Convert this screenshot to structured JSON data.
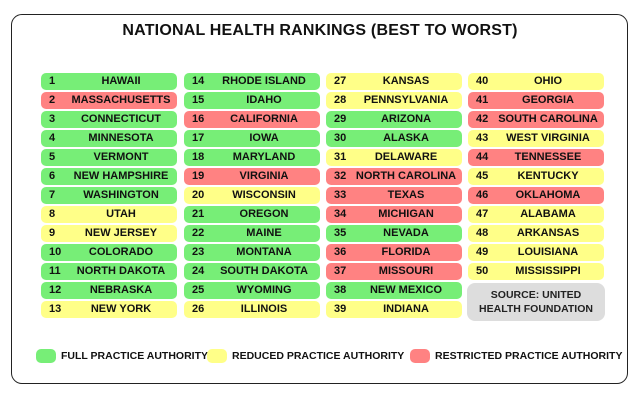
{
  "title": "NATIONAL HEALTH RANKINGS (BEST TO WORST)",
  "categories": {
    "full": {
      "label": "FULL PRACTICE AUTHORITY",
      "color": "#77ee77"
    },
    "reduced": {
      "label": "REDUCED PRACTICE AUTHORITY",
      "color": "#ffff88"
    },
    "restricted": {
      "label": "RESTRICTED PRACTICE AUTHORITY",
      "color": "#ff8282"
    }
  },
  "rankings": [
    {
      "rank": "1",
      "state": "HAWAII",
      "status": "full"
    },
    {
      "rank": "2",
      "state": "MASSACHUSETTS",
      "status": "restricted"
    },
    {
      "rank": "3",
      "state": "CONNECTICUT",
      "status": "full"
    },
    {
      "rank": "4",
      "state": "MINNESOTA",
      "status": "full"
    },
    {
      "rank": "5",
      "state": "VERMONT",
      "status": "full"
    },
    {
      "rank": "6",
      "state": "NEW HAMPSHIRE",
      "status": "full"
    },
    {
      "rank": "7",
      "state": "WASHINGTON",
      "status": "full"
    },
    {
      "rank": "8",
      "state": "UTAH",
      "status": "reduced"
    },
    {
      "rank": "9",
      "state": "NEW JERSEY",
      "status": "reduced"
    },
    {
      "rank": "10",
      "state": "COLORADO",
      "status": "full"
    },
    {
      "rank": "11",
      "state": "NORTH DAKOTA",
      "status": "full"
    },
    {
      "rank": "12",
      "state": "NEBRASKA",
      "status": "full"
    },
    {
      "rank": "13",
      "state": "NEW YORK",
      "status": "reduced"
    },
    {
      "rank": "14",
      "state": "RHODE ISLAND",
      "status": "full"
    },
    {
      "rank": "15",
      "state": "IDAHO",
      "status": "full"
    },
    {
      "rank": "16",
      "state": "CALIFORNIA",
      "status": "restricted"
    },
    {
      "rank": "17",
      "state": "IOWA",
      "status": "full"
    },
    {
      "rank": "18",
      "state": "MARYLAND",
      "status": "full"
    },
    {
      "rank": "19",
      "state": "VIRGINIA",
      "status": "restricted"
    },
    {
      "rank": "20",
      "state": "WISCONSIN",
      "status": "reduced"
    },
    {
      "rank": "21",
      "state": "OREGON",
      "status": "full"
    },
    {
      "rank": "22",
      "state": "MAINE",
      "status": "full"
    },
    {
      "rank": "23",
      "state": "MONTANA",
      "status": "full"
    },
    {
      "rank": "24",
      "state": "SOUTH DAKOTA",
      "status": "full"
    },
    {
      "rank": "25",
      "state": "WYOMING",
      "status": "full"
    },
    {
      "rank": "26",
      "state": "ILLINOIS",
      "status": "reduced"
    },
    {
      "rank": "27",
      "state": "KANSAS",
      "status": "reduced"
    },
    {
      "rank": "28",
      "state": "PENNSYLVANIA",
      "status": "reduced"
    },
    {
      "rank": "29",
      "state": "ARIZONA",
      "status": "full"
    },
    {
      "rank": "30",
      "state": "ALASKA",
      "status": "full"
    },
    {
      "rank": "31",
      "state": "DELAWARE",
      "status": "reduced"
    },
    {
      "rank": "32",
      "state": "NORTH CAROLINA",
      "status": "restricted"
    },
    {
      "rank": "33",
      "state": "TEXAS",
      "status": "restricted"
    },
    {
      "rank": "34",
      "state": "MICHIGAN",
      "status": "restricted"
    },
    {
      "rank": "35",
      "state": "NEVADA",
      "status": "full"
    },
    {
      "rank": "36",
      "state": "FLORIDA",
      "status": "restricted"
    },
    {
      "rank": "37",
      "state": "MISSOURI",
      "status": "restricted"
    },
    {
      "rank": "38",
      "state": "NEW MEXICO",
      "status": "full"
    },
    {
      "rank": "39",
      "state": "INDIANA",
      "status": "reduced"
    },
    {
      "rank": "40",
      "state": "OHIO",
      "status": "reduced"
    },
    {
      "rank": "41",
      "state": "GEORGIA",
      "status": "restricted"
    },
    {
      "rank": "42",
      "state": "SOUTH CAROLINA",
      "status": "restricted"
    },
    {
      "rank": "43",
      "state": "WEST VIRGINIA",
      "status": "reduced"
    },
    {
      "rank": "44",
      "state": "TENNESSEE",
      "status": "restricted"
    },
    {
      "rank": "45",
      "state": "KENTUCKY",
      "status": "reduced"
    },
    {
      "rank": "46",
      "state": "OKLAHOMA",
      "status": "restricted"
    },
    {
      "rank": "47",
      "state": "ALABAMA",
      "status": "reduced"
    },
    {
      "rank": "48",
      "state": "ARKANSAS",
      "status": "reduced"
    },
    {
      "rank": "49",
      "state": "LOUISIANA",
      "status": "reduced"
    },
    {
      "rank": "50",
      "state": "MISSISSIPPI",
      "status": "reduced"
    }
  ],
  "source_line1": "SOURCE: UNITED",
  "source_line2": "HEALTH FOUNDATION"
}
